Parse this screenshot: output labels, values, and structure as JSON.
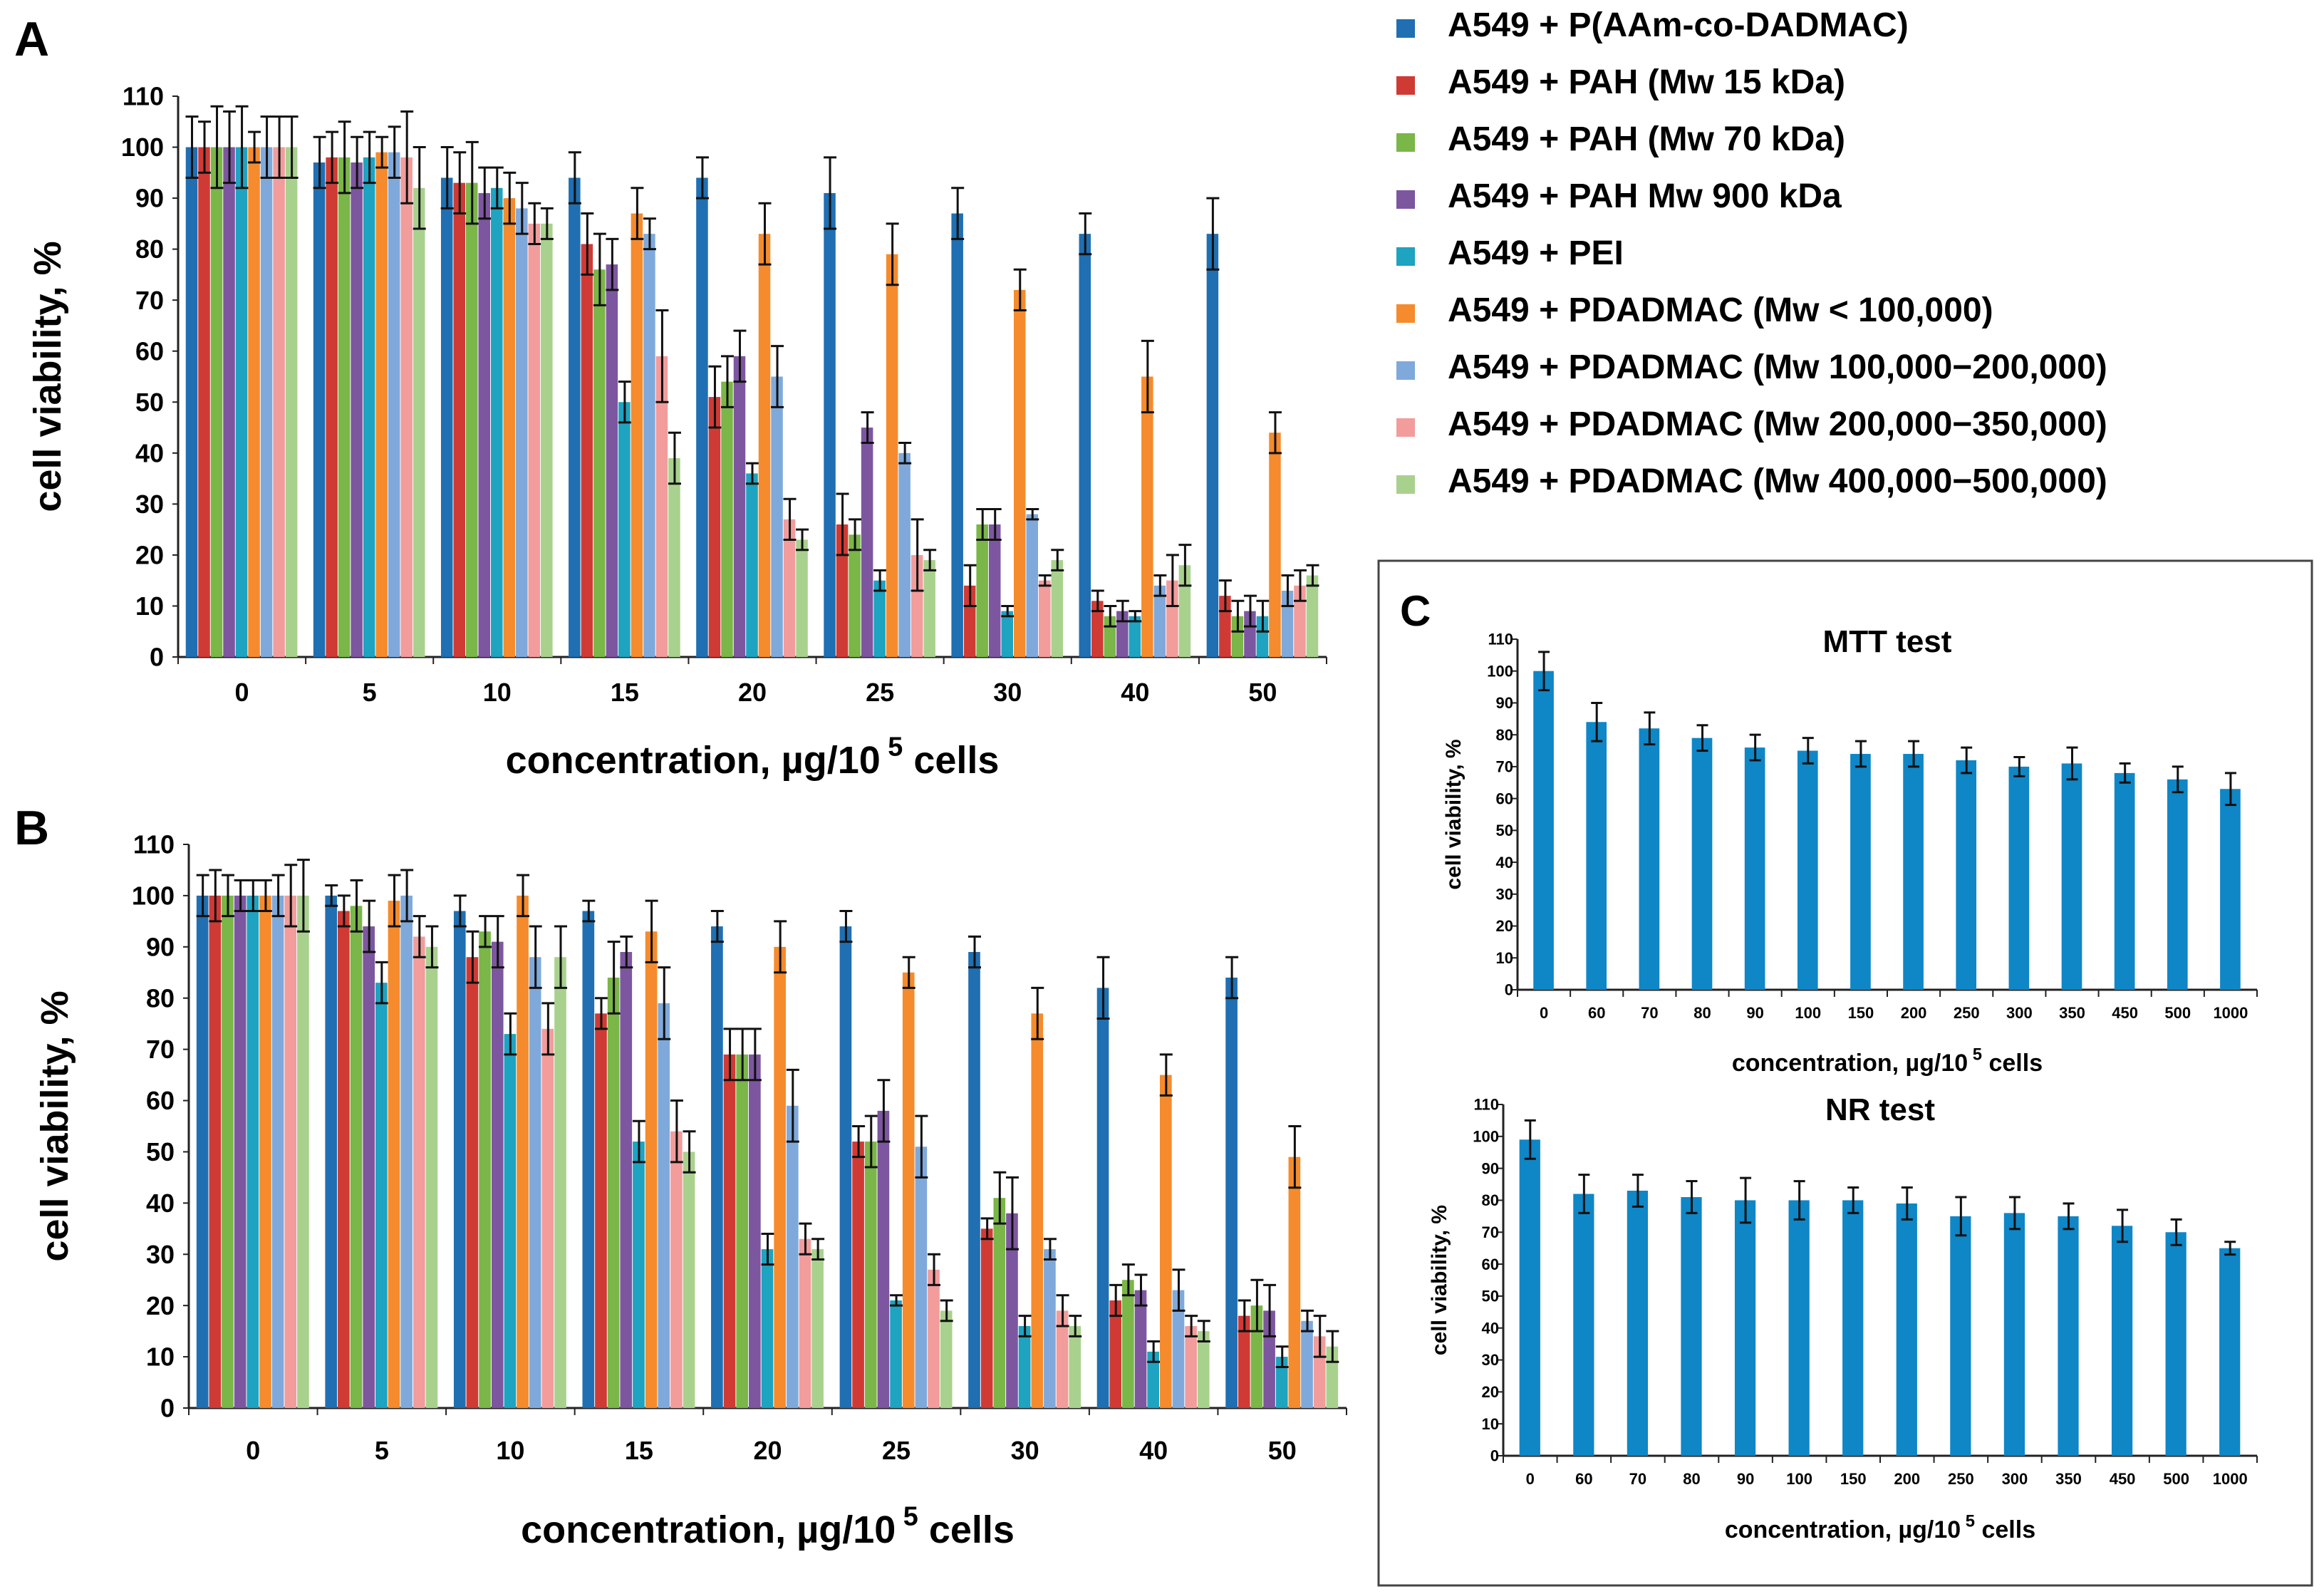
{
  "figure": {
    "panel_labels": [
      "A",
      "B",
      "C"
    ],
    "colors": {
      "P(AAm-co-DADMAC)": "#1f6fb2",
      "PAH15": "#d03a35",
      "PAH70": "#7ab648",
      "PAH900": "#7d56a0",
      "PEI": "#1ea3c0",
      "PDADMAC100": "#f58b2c",
      "PDADMAC100_200": "#7fa9db",
      "PDADMAC200_350": "#f29c9c",
      "PDADMAC400_500": "#a9d18e",
      "single": "#0f86c6"
    }
  },
  "chart_data": [
    {
      "id": "A",
      "type": "bar",
      "title": "",
      "xlabel": "concentration, µg/10",
      "xlabel_sup": "5",
      "xlabel_suffix": "cells",
      "ylabel": "cell viability, %",
      "ylim": [
        0,
        110
      ],
      "yticks": [
        0,
        10,
        20,
        30,
        40,
        50,
        60,
        70,
        80,
        90,
        100,
        110
      ],
      "categories": [
        "0",
        "5",
        "10",
        "15",
        "20",
        "25",
        "30",
        "40",
        "50"
      ],
      "series": [
        {
          "name": "A549 + P(AAm-co-DADMAC)",
          "color": "#1f6fb2",
          "values": [
            100,
            97,
            94,
            94,
            94,
            91,
            87,
            83,
            83
          ],
          "errors": [
            6,
            5,
            6,
            5,
            4,
            7,
            5,
            4,
            7
          ]
        },
        {
          "name": "A549 + PAH (Mw 15 kDa)",
          "color": "#d03a35",
          "values": [
            100,
            98,
            93,
            81,
            51,
            26,
            14,
            11,
            12
          ],
          "errors": [
            5,
            5,
            6,
            6,
            6,
            6,
            4,
            2,
            3
          ]
        },
        {
          "name": "A549 + PAH (Mw 70 kDa)",
          "color": "#7ab648",
          "values": [
            100,
            98,
            93,
            76,
            54,
            24,
            26,
            8,
            8
          ],
          "errors": [
            8,
            7,
            8,
            7,
            5,
            3,
            3,
            2,
            3
          ]
        },
        {
          "name": "A549 + PAH Mw 900 kDa",
          "color": "#7d56a0",
          "values": [
            100,
            97,
            91,
            77,
            59,
            45,
            26,
            9,
            9
          ],
          "errors": [
            7,
            5,
            5,
            5,
            5,
            3,
            3,
            2,
            3
          ]
        },
        {
          "name": "A549 + PEI",
          "color": "#1ea3c0",
          "values": [
            100,
            98,
            92,
            50,
            36,
            15,
            9,
            8,
            8
          ],
          "errors": [
            8,
            5,
            4,
            4,
            2,
            2,
            1,
            1,
            3
          ]
        },
        {
          "name": "A549 + PDADMAC (Mw < 100,000)",
          "color": "#f58b2c",
          "values": [
            100,
            99,
            90,
            87,
            83,
            79,
            72,
            55,
            44
          ],
          "errors": [
            3,
            3,
            5,
            5,
            6,
            6,
            4,
            7,
            4
          ]
        },
        {
          "name": "A549 + PDADMAC (Mw 100,000−200,000)",
          "color": "#7fa9db",
          "values": [
            100,
            99,
            88,
            83,
            55,
            40,
            28,
            14,
            13
          ],
          "errors": [
            6,
            5,
            5,
            3,
            6,
            2,
            1,
            2,
            3
          ]
        },
        {
          "name": "A549 + PDADMAC (Mw 200,000−350,000)",
          "color": "#f29c9c",
          "values": [
            100,
            98,
            85,
            59,
            27,
            20,
            15,
            15,
            14
          ],
          "errors": [
            6,
            9,
            4,
            9,
            4,
            7,
            1,
            5,
            3
          ]
        },
        {
          "name": "A549 + PDADMAC (Mw 400,000−500,000)",
          "color": "#a9d18e",
          "values": [
            100,
            92,
            85,
            39,
            23,
            19,
            19,
            18,
            16
          ],
          "errors": [
            6,
            8,
            3,
            5,
            2,
            2,
            2,
            4,
            2
          ]
        }
      ]
    },
    {
      "id": "B",
      "type": "bar",
      "title": "",
      "xlabel": "concentration, µg/10",
      "xlabel_sup": "5",
      "xlabel_suffix": "cells",
      "ylabel": "cell viability, %",
      "ylim": [
        0,
        110
      ],
      "yticks": [
        0,
        10,
        20,
        30,
        40,
        50,
        60,
        70,
        80,
        90,
        100,
        110
      ],
      "categories": [
        "0",
        "5",
        "10",
        "15",
        "20",
        "25",
        "30",
        "40",
        "50"
      ],
      "series": [
        {
          "name": "A549 + P(AAm-co-DADMAC)",
          "color": "#1f6fb2",
          "values": [
            100,
            100,
            97,
            97,
            94,
            94,
            89,
            82,
            84
          ],
          "errors": [
            4,
            2,
            3,
            2,
            3,
            3,
            3,
            6,
            4
          ]
        },
        {
          "name": "A549 + PAH (Mw 15 kDa)",
          "color": "#d03a35",
          "values": [
            100,
            97,
            88,
            77,
            69,
            52,
            35,
            21,
            18
          ],
          "errors": [
            5,
            3,
            5,
            3,
            5,
            3,
            2,
            3,
            3
          ]
        },
        {
          "name": "A549 + PAH (Mw 70 kDa)",
          "color": "#7ab648",
          "values": [
            100,
            98,
            93,
            84,
            69,
            52,
            41,
            25,
            20
          ],
          "errors": [
            4,
            5,
            3,
            7,
            5,
            5,
            5,
            3,
            5
          ]
        },
        {
          "name": "A549 + PAH Mw 900 kDa",
          "color": "#7d56a0",
          "values": [
            100,
            94,
            91,
            89,
            69,
            58,
            38,
            23,
            19
          ],
          "errors": [
            3,
            5,
            5,
            3,
            5,
            6,
            7,
            3,
            5
          ]
        },
        {
          "name": "A549 + PEI",
          "color": "#1ea3c0",
          "values": [
            100,
            83,
            73,
            52,
            31,
            21,
            16,
            11,
            10
          ],
          "errors": [
            3,
            4,
            4,
            4,
            3,
            1,
            2,
            2,
            2
          ]
        },
        {
          "name": "A549 + PDADMAC (Mw < 100,000)",
          "color": "#f58b2c",
          "values": [
            100,
            99,
            100,
            93,
            90,
            85,
            77,
            65,
            49
          ],
          "errors": [
            3,
            5,
            4,
            6,
            5,
            3,
            5,
            4,
            6
          ]
        },
        {
          "name": "A549 + PDADMAC (Mw 100,000−200,000)",
          "color": "#7fa9db",
          "values": [
            100,
            100,
            88,
            79,
            59,
            51,
            31,
            23,
            17
          ],
          "errors": [
            4,
            5,
            6,
            7,
            7,
            6,
            2,
            4,
            2
          ]
        },
        {
          "name": "A549 + PDADMAC (Mw 200,000−350,000)",
          "color": "#f29c9c",
          "values": [
            100,
            92,
            74,
            54,
            33,
            27,
            19,
            16,
            14
          ],
          "errors": [
            6,
            4,
            5,
            6,
            3,
            3,
            3,
            2,
            4
          ]
        },
        {
          "name": "A549 + PDADMAC (Mw 400,000−500,000)",
          "color": "#a9d18e",
          "values": [
            100,
            90,
            88,
            50,
            31,
            19,
            16,
            15,
            12
          ],
          "errors": [
            7,
            4,
            6,
            4,
            2,
            2,
            2,
            2,
            3
          ]
        }
      ]
    },
    {
      "id": "C-MTT",
      "type": "bar",
      "title": "MTT  test",
      "xlabel": "concentration, µg/10",
      "xlabel_sup": "5",
      "xlabel_suffix": "cells",
      "ylabel": "cell viability, %",
      "ylim": [
        0,
        110
      ],
      "yticks": [
        0,
        10,
        20,
        30,
        40,
        50,
        60,
        70,
        80,
        90,
        100,
        110
      ],
      "categories": [
        "0",
        "60",
        "70",
        "80",
        "90",
        "100",
        "150",
        "200",
        "250",
        "300",
        "350",
        "450",
        "500",
        "1000"
      ],
      "series": [
        {
          "name": "MTT",
          "color": "#0f86c6",
          "values": [
            100,
            84,
            82,
            79,
            76,
            75,
            74,
            74,
            72,
            70,
            71,
            68,
            66,
            63
          ],
          "errors": [
            6,
            6,
            5,
            4,
            4,
            4,
            4,
            4,
            4,
            3,
            5,
            3,
            4,
            5
          ]
        }
      ]
    },
    {
      "id": "C-NR",
      "type": "bar",
      "title": "NR  test",
      "xlabel": "concentration, µg/10",
      "xlabel_sup": "5",
      "xlabel_suffix": "cells",
      "ylabel": "cell viability, %",
      "ylim": [
        0,
        110
      ],
      "yticks": [
        0,
        10,
        20,
        30,
        40,
        50,
        60,
        70,
        80,
        90,
        100,
        110
      ],
      "categories": [
        "0",
        "60",
        "70",
        "80",
        "90",
        "100",
        "150",
        "200",
        "250",
        "300",
        "350",
        "450",
        "500",
        "1000"
      ],
      "series": [
        {
          "name": "NR",
          "color": "#0f86c6",
          "values": [
            99,
            82,
            83,
            81,
            80,
            80,
            80,
            79,
            75,
            76,
            75,
            72,
            70,
            65
          ],
          "errors": [
            6,
            6,
            5,
            5,
            7,
            6,
            4,
            5,
            6,
            5,
            4,
            5,
            4,
            2
          ]
        }
      ]
    }
  ]
}
